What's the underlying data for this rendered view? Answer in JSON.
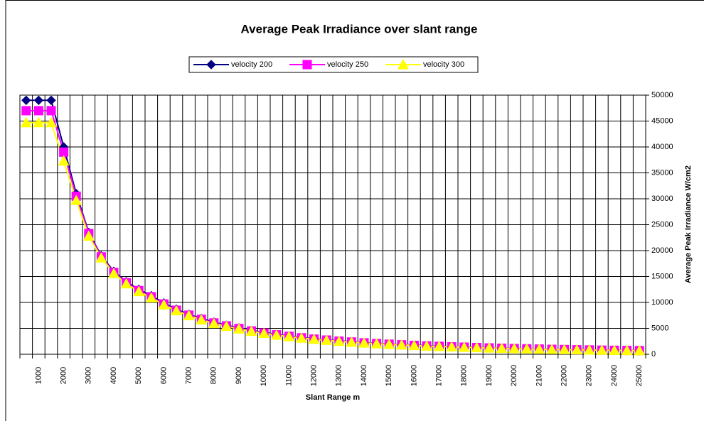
{
  "chart_data": {
    "type": "line",
    "title": "Average Peak Irradiance over slant range",
    "x_label": "Slant Range m",
    "y_label": "Average Peak Irradiance W/cm2",
    "categories": [
      null,
      "1000",
      null,
      "2000",
      null,
      "3000",
      null,
      "4000",
      null,
      "5000",
      null,
      "6000",
      null,
      "7000",
      null,
      "8000",
      null,
      "9000",
      null,
      "10000",
      null,
      "11000",
      null,
      "12000",
      null,
      "13000",
      null,
      "14000",
      null,
      "15000",
      null,
      "16000",
      null,
      "17000",
      null,
      "18000",
      null,
      "19000",
      null,
      "20000",
      null,
      "21000",
      null,
      "22000",
      null,
      "23000",
      null,
      "24000",
      null,
      "25000"
    ],
    "series": [
      {
        "name": "velocity 200",
        "color": "#000080",
        "marker": "diamond",
        "values": [
          49000,
          49000,
          49000,
          40000,
          31000,
          23500,
          19000,
          16000,
          14000,
          12500,
          11300,
          9900,
          8700,
          7700,
          6900,
          6200,
          5600,
          5100,
          4600,
          4200,
          3850,
          3550,
          3250,
          3000,
          2800,
          2600,
          2420,
          2260,
          2120,
          1990,
          1870,
          1760,
          1660,
          1570,
          1480,
          1400,
          1330,
          1260,
          1200,
          1140,
          1080,
          1030,
          980,
          940,
          900,
          860,
          820,
          790,
          750,
          720
        ]
      },
      {
        "name": "velocity 250",
        "color": "#ff00ff",
        "marker": "square",
        "values": [
          47000,
          47000,
          47000,
          39000,
          30500,
          23300,
          18800,
          15800,
          13800,
          12300,
          11100,
          9700,
          8500,
          7550,
          6750,
          6050,
          5480,
          4980,
          4500,
          4100,
          3760,
          3470,
          3180,
          2930,
          2740,
          2540,
          2370,
          2210,
          2070,
          1950,
          1830,
          1720,
          1620,
          1530,
          1450,
          1370,
          1300,
          1230,
          1170,
          1110,
          1060,
          1010,
          960,
          920,
          880,
          840,
          800,
          770,
          740,
          710
        ]
      },
      {
        "name": "velocity 300",
        "color": "#ffff00",
        "marker": "triangle",
        "values": [
          44700,
          44700,
          44700,
          37300,
          29700,
          22800,
          18600,
          15600,
          13600,
          12100,
          10900,
          9550,
          8400,
          7450,
          6650,
          5950,
          5400,
          4900,
          4430,
          4040,
          3700,
          3410,
          3130,
          2890,
          2700,
          2500,
          2330,
          2180,
          2040,
          1920,
          1800,
          1700,
          1600,
          1510,
          1430,
          1350,
          1280,
          1220,
          1160,
          1100,
          1050,
          1000,
          950,
          910,
          870,
          830,
          790,
          760,
          730,
          700
        ]
      }
    ],
    "ylim": [
      0,
      50000
    ],
    "yticks": [
      0,
      5000,
      10000,
      15000,
      20000,
      25000,
      30000,
      35000,
      40000,
      45000,
      50000
    ],
    "y_axis_side": "right",
    "grid": true,
    "legend": "top"
  }
}
